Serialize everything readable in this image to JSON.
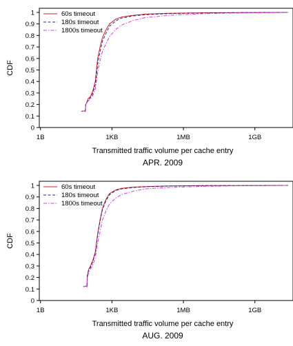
{
  "chart_data": [
    {
      "type": "line",
      "caption": "APR. 2009",
      "xlabel": "Transmitted traffic volume per cache entry",
      "ylabel": "CDF",
      "x_scale": "log10 (bytes)",
      "x_ticks": [
        "1B",
        "1KB",
        "1MB",
        "1GB"
      ],
      "y_ticks": [
        "0",
        "0.1",
        "0.2",
        "0.3",
        "0.4",
        "0.5",
        "0.6",
        "0.7",
        "0.8",
        "0.9",
        "1"
      ],
      "ylim": [
        0,
        1
      ],
      "grid": false,
      "legend_position": "top-left",
      "series": [
        {
          "name": "60s timeout",
          "color": "#d7191c",
          "dash": "solid",
          "points": [
            [
              2.3,
              0.14
            ],
            [
              2.45,
              0.145
            ],
            [
              2.48,
              0.14
            ],
            [
              2.5,
              0.2
            ],
            [
              2.55,
              0.22
            ],
            [
              2.6,
              0.25
            ],
            [
              2.7,
              0.27
            ],
            [
              2.8,
              0.32
            ],
            [
              2.9,
              0.4
            ],
            [
              3.0,
              0.6
            ],
            [
              3.1,
              0.7
            ],
            [
              3.2,
              0.78
            ],
            [
              3.35,
              0.85
            ],
            [
              3.5,
              0.9
            ],
            [
              3.75,
              0.94
            ],
            [
              4.0,
              0.96
            ],
            [
              4.5,
              0.975
            ],
            [
              5.0,
              0.985
            ],
            [
              6.0,
              0.993
            ],
            [
              7.5,
              0.997
            ],
            [
              9.0,
              0.999
            ],
            [
              11.0,
              1.0
            ]
          ]
        },
        {
          "name": "180s timeout",
          "color": "#1a237e",
          "dash": "dashed",
          "points": [
            [
              2.3,
              0.14
            ],
            [
              2.45,
              0.145
            ],
            [
              2.48,
              0.14
            ],
            [
              2.5,
              0.2
            ],
            [
              2.55,
              0.22
            ],
            [
              2.6,
              0.24
            ],
            [
              2.7,
              0.26
            ],
            [
              2.8,
              0.3
            ],
            [
              2.9,
              0.37
            ],
            [
              3.0,
              0.55
            ],
            [
              3.1,
              0.66
            ],
            [
              3.2,
              0.75
            ],
            [
              3.35,
              0.82
            ],
            [
              3.5,
              0.88
            ],
            [
              3.75,
              0.925
            ],
            [
              4.0,
              0.95
            ],
            [
              4.5,
              0.97
            ],
            [
              5.0,
              0.98
            ],
            [
              6.0,
              0.99
            ],
            [
              7.5,
              0.995
            ],
            [
              9.0,
              0.998
            ],
            [
              11.0,
              1.0
            ]
          ]
        },
        {
          "name": "1800s timeout",
          "color": "#e633e6",
          "dash": "dashdot",
          "points": [
            [
              2.3,
              0.14
            ],
            [
              2.45,
              0.145
            ],
            [
              2.48,
              0.14
            ],
            [
              2.5,
              0.2
            ],
            [
              2.55,
              0.22
            ],
            [
              2.6,
              0.23
            ],
            [
              2.7,
              0.25
            ],
            [
              2.8,
              0.28
            ],
            [
              2.9,
              0.33
            ],
            [
              3.0,
              0.48
            ],
            [
              3.1,
              0.58
            ],
            [
              3.2,
              0.66
            ],
            [
              3.35,
              0.73
            ],
            [
              3.5,
              0.79
            ],
            [
              3.75,
              0.85
            ],
            [
              4.0,
              0.89
            ],
            [
              4.5,
              0.93
            ],
            [
              5.0,
              0.955
            ],
            [
              6.0,
              0.975
            ],
            [
              7.5,
              0.99
            ],
            [
              9.0,
              0.995
            ],
            [
              11.0,
              1.0
            ]
          ]
        }
      ]
    },
    {
      "type": "line",
      "caption": "AUG. 2009",
      "xlabel": "Transmitted traffic volume per cache entry",
      "ylabel": "CDF",
      "x_scale": "log10 (bytes)",
      "x_ticks": [
        "1B",
        "1KB",
        "1MB",
        "1GB"
      ],
      "y_ticks": [
        "0",
        "0.1",
        "0.2",
        "0.3",
        "0.4",
        "0.5",
        "0.6",
        "0.7",
        "0.8",
        "0.9",
        "1"
      ],
      "ylim": [
        0,
        1
      ],
      "grid": false,
      "legend_position": "top-left",
      "series": [
        {
          "name": "60s timeout",
          "color": "#d7191c",
          "dash": "solid",
          "points": [
            [
              2.4,
              0.12
            ],
            [
              2.52,
              0.125
            ],
            [
              2.55,
              0.12
            ],
            [
              2.57,
              0.22
            ],
            [
              2.62,
              0.27
            ],
            [
              2.7,
              0.3
            ],
            [
              2.8,
              0.35
            ],
            [
              2.9,
              0.42
            ],
            [
              3.0,
              0.58
            ],
            [
              3.1,
              0.7
            ],
            [
              3.2,
              0.8
            ],
            [
              3.35,
              0.88
            ],
            [
              3.5,
              0.93
            ],
            [
              3.75,
              0.96
            ],
            [
              4.0,
              0.975
            ],
            [
              4.5,
              0.985
            ],
            [
              5.0,
              0.99
            ],
            [
              6.0,
              0.995
            ],
            [
              7.5,
              0.998
            ],
            [
              9.0,
              0.999
            ],
            [
              11.0,
              1.0
            ]
          ]
        },
        {
          "name": "180s timeout",
          "color": "#1a237e",
          "dash": "dashed",
          "points": [
            [
              2.4,
              0.12
            ],
            [
              2.52,
              0.125
            ],
            [
              2.55,
              0.12
            ],
            [
              2.57,
              0.22
            ],
            [
              2.62,
              0.26
            ],
            [
              2.7,
              0.29
            ],
            [
              2.8,
              0.34
            ],
            [
              2.9,
              0.41
            ],
            [
              3.0,
              0.57
            ],
            [
              3.1,
              0.69
            ],
            [
              3.2,
              0.79
            ],
            [
              3.35,
              0.87
            ],
            [
              3.5,
              0.92
            ],
            [
              3.75,
              0.955
            ],
            [
              4.0,
              0.97
            ],
            [
              4.5,
              0.982
            ],
            [
              5.0,
              0.988
            ],
            [
              6.0,
              0.994
            ],
            [
              7.5,
              0.998
            ],
            [
              9.0,
              0.999
            ],
            [
              11.0,
              1.0
            ]
          ]
        },
        {
          "name": "1800s timeout",
          "color": "#e633e6",
          "dash": "dashdot",
          "points": [
            [
              2.4,
              0.12
            ],
            [
              2.52,
              0.125
            ],
            [
              2.55,
              0.12
            ],
            [
              2.57,
              0.2
            ],
            [
              2.62,
              0.24
            ],
            [
              2.7,
              0.27
            ],
            [
              2.8,
              0.31
            ],
            [
              2.9,
              0.37
            ],
            [
              3.0,
              0.5
            ],
            [
              3.1,
              0.6
            ],
            [
              3.2,
              0.7
            ],
            [
              3.35,
              0.78
            ],
            [
              3.5,
              0.84
            ],
            [
              3.75,
              0.89
            ],
            [
              4.0,
              0.92
            ],
            [
              4.5,
              0.95
            ],
            [
              5.0,
              0.97
            ],
            [
              6.0,
              0.982
            ],
            [
              7.5,
              0.992
            ],
            [
              9.0,
              0.997
            ],
            [
              11.0,
              1.0
            ]
          ]
        }
      ]
    }
  ]
}
